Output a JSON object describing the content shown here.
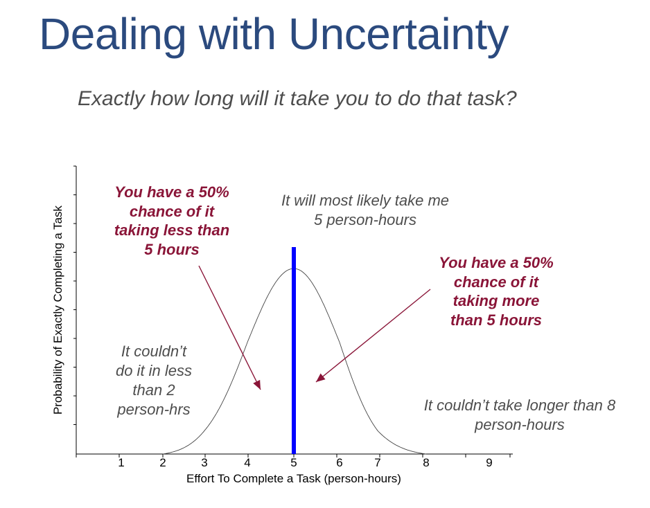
{
  "slide": {
    "title": "Dealing with Uncertainty",
    "subtitle": "Exactly how long will it take you to do that task?"
  },
  "annotations": {
    "most_likely_line1": "It will most likely take me",
    "most_likely_line2": "5 person-hours",
    "less_line1": "You have a 50%",
    "less_line2": "chance of it",
    "less_line3": "taking less than",
    "less_line4": "5 hours",
    "more_line1": "You have a 50%",
    "more_line2": "chance of it",
    "more_line3": "taking more",
    "more_line4": "than 5 hours",
    "min_line1": "It couldn’t",
    "min_line2": "do it in less",
    "min_line3": "than 2",
    "min_line4": "person-hrs",
    "max_line1": "It couldn’t take longer than 8",
    "max_line2": "person-hours"
  },
  "chart_data": {
    "type": "line",
    "xlabel": "Effort To Complete a Task (person-hours)",
    "ylabel": "Probability of Exactly Completing a Task",
    "x_ticks": [
      "1",
      "2",
      "3",
      "4",
      "5",
      "6",
      "7",
      "8",
      "9"
    ],
    "xlim": [
      0,
      9.5
    ],
    "distribution": {
      "shape": "bell",
      "mean": 5,
      "min": 2,
      "max": 8
    },
    "marker_line_x": 5,
    "colors": {
      "curve": "#444444",
      "marker": "#0000ff",
      "emphasis": "#8a1538",
      "title": "#2b4a7e"
    }
  }
}
